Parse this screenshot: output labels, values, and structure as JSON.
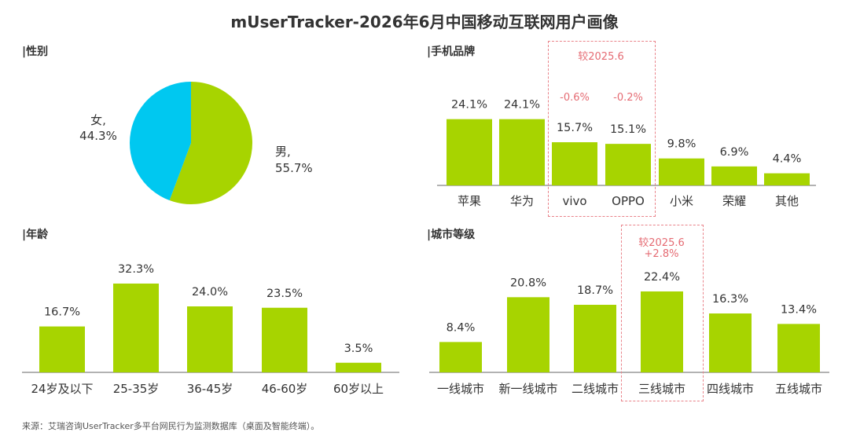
{
  "title": "mUserTracker-2026年6月中国移动互联网用户画像",
  "footer": "来源：艾瑞咨询UserTracker多平台网民行为监测数据库（桌面及智能终端）。",
  "colors": {
    "bar": "#a7d400",
    "pie_male": "#a7d400",
    "pie_female": "#00c8f0",
    "highlight": "#e56b73"
  },
  "sections": {
    "gender": "|性别",
    "brand": "|手机品牌",
    "age": "|年龄",
    "city": "|城市等级"
  },
  "highlights": {
    "brand": {
      "label": "较2025.6",
      "changes": [
        "-0.6%",
        "-0.2%"
      ]
    },
    "city": {
      "label": "较2025.6",
      "change": "+2.8%"
    }
  },
  "chart_data": [
    {
      "id": "gender",
      "type": "pie",
      "categories": [
        "男",
        "女"
      ],
      "values": [
        55.7,
        44.3
      ],
      "value_labels": [
        "55.7%",
        "44.3%"
      ],
      "label_texts": [
        "男,",
        "女,"
      ]
    },
    {
      "id": "brand",
      "type": "bar",
      "categories": [
        "苹果",
        "华为",
        "vivo",
        "OPPO",
        "小米",
        "荣耀",
        "其他"
      ],
      "values": [
        24.1,
        24.1,
        15.7,
        15.1,
        9.8,
        6.9,
        4.4
      ],
      "value_labels": [
        "24.1%",
        "24.1%",
        "15.7%",
        "15.1%",
        "9.8%",
        "6.9%",
        "4.4%"
      ]
    },
    {
      "id": "age",
      "type": "bar",
      "categories": [
        "24岁及以下",
        "25-35岁",
        "36-45岁",
        "46-60岁",
        "60岁以上"
      ],
      "values": [
        16.7,
        32.3,
        24.0,
        23.5,
        3.5
      ],
      "value_labels": [
        "16.7%",
        "32.3%",
        "24.0%",
        "23.5%",
        "3.5%"
      ]
    },
    {
      "id": "city",
      "type": "bar",
      "categories": [
        "一线城市",
        "新一线城市",
        "二线城市",
        "三线城市",
        "四线城市",
        "五线城市"
      ],
      "values": [
        8.4,
        20.8,
        18.7,
        22.4,
        16.3,
        13.4
      ],
      "value_labels": [
        "8.4%",
        "20.8%",
        "18.7%",
        "22.4%",
        "16.3%",
        "13.4%"
      ]
    }
  ]
}
